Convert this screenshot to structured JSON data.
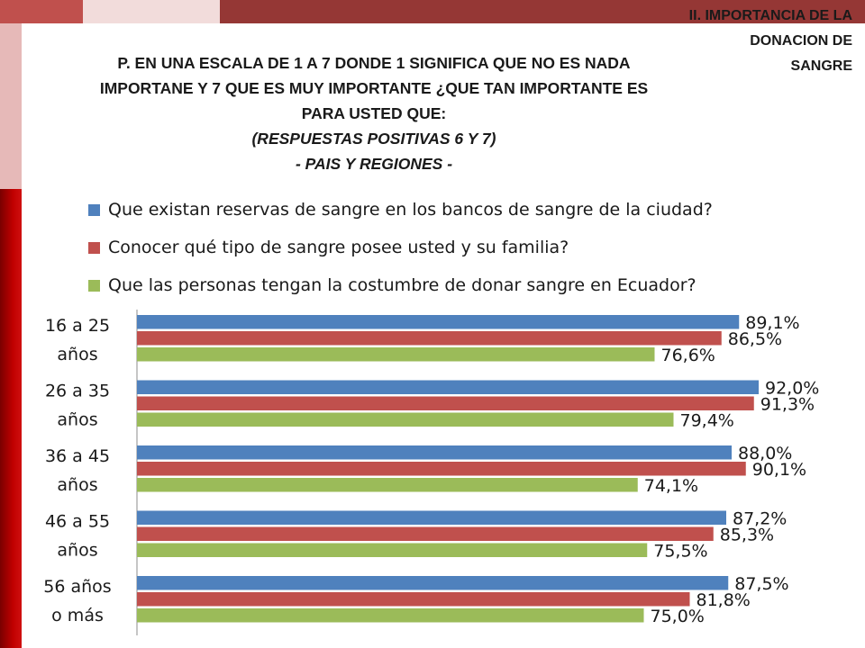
{
  "section_title": "II. IMPORTANCIA DE LA\nDONACION DE\nSANGRE",
  "question": {
    "lines": [
      "P. EN UNA ESCALA DE 1 A 7 DONDE 1 SIGNIFICA QUE NO ES NADA",
      "IMPORTANE Y 7 QUE ES MUY IMPORTANTE ¿QUE TAN IMPORTANTE ES",
      "PARA USTED QUE:"
    ],
    "subtitle": "(RESPUESTAS POSITIVAS 6 Y 7)",
    "scope": "- PAIS Y REGIONES -"
  },
  "colors": {
    "series_1": "#4f81bd",
    "series_2": "#c0504d",
    "series_3": "#9bbb59"
  },
  "chart_data": {
    "type": "bar",
    "orientation": "horizontal",
    "categories": [
      [
        "16 a 25",
        "años"
      ],
      [
        "26 a 35",
        "años"
      ],
      [
        "36 a 45",
        "años"
      ],
      [
        "46 a 55",
        "años"
      ],
      [
        "56 años",
        "o más"
      ]
    ],
    "series": [
      {
        "name": "Que existan reservas de sangre en los bancos de sangre de la ciudad?",
        "values": [
          89.1,
          92.0,
          88.0,
          87.2,
          87.5
        ],
        "labels": [
          "89,1%",
          "92,0%",
          "88,0%",
          "87,2%",
          "87,5%"
        ]
      },
      {
        "name": "Conocer qué tipo de sangre posee usted y su familia?",
        "values": [
          86.5,
          91.3,
          90.1,
          85.3,
          81.8
        ],
        "labels": [
          "86,5%",
          "91,3%",
          "90,1%",
          "85,3%",
          "81,8%"
        ]
      },
      {
        "name": "Que las personas tengan la costumbre de donar sangre en Ecuador?",
        "values": [
          76.6,
          79.4,
          74.1,
          75.5,
          75.0
        ],
        "labels": [
          "76,6%",
          "79,4%",
          "74,1%",
          "75,5%",
          "75,0%"
        ]
      }
    ],
    "xlim": [
      0,
      100
    ],
    "unit": "%",
    "legend_position": "top",
    "grid": false
  }
}
